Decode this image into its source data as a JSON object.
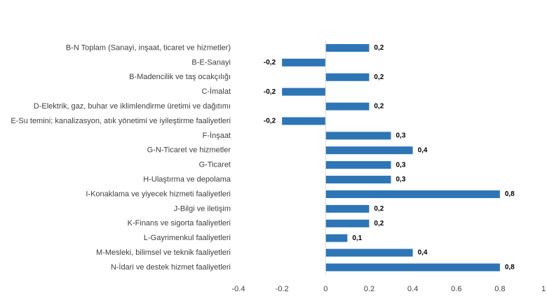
{
  "chart_data": {
    "type": "bar",
    "orientation": "horizontal",
    "categories": [
      "B-N Toplam (Sanayi, inşaat, ticaret ve hizmetler)",
      "B-E-Sanayi",
      "B-Madencilik ve taş ocakçılığı",
      "C-İmalat",
      "D-Elektrik, gaz, buhar ve iklimlendirme üretimi ve dağıtımı",
      "E-Su temini; kanalizasyon, atık yönetimi ve iyileştirme faaliyetleri",
      "F-İnşaat",
      "G-N-Ticaret ve hizmetler",
      "G-Ticaret",
      "H-Ulaştırma ve depolama",
      "I-Konaklama ve yiyecek hizmeti faaliyetleri",
      "J-Bilgi ve iletişim",
      "K-Finans ve sigorta faaliyetleri",
      "L-Gayrimenkul faaliyetleri",
      "M-Mesleki, bilimsel ve teknik faaliyetleri",
      "N-İdari ve destek hizmet faaliyetleri"
    ],
    "values": [
      0.2,
      -0.2,
      0.2,
      -0.2,
      0.2,
      -0.2,
      0.3,
      0.4,
      0.3,
      0.3,
      0.8,
      0.2,
      0.2,
      0.1,
      0.4,
      0.8
    ],
    "value_labels": [
      "0,2",
      "-0,2",
      "0,2",
      "-0,2",
      "0,2",
      "-0,2",
      "0,3",
      "0,4",
      "0,3",
      "0,3",
      "0,8",
      "0,2",
      "0,2",
      "0,1",
      "0,4",
      "0,8"
    ],
    "xlim": [
      -0.4,
      1
    ],
    "xticks": [
      -0.4,
      -0.2,
      0,
      0.2,
      0.4,
      0.6,
      0.8,
      1
    ],
    "xtick_labels": [
      "-0.4",
      "-0.2",
      "0",
      "0.2",
      "0.4",
      "0.6",
      "0.8",
      "1"
    ],
    "bar_color": "#2e75b6",
    "grid": false,
    "legend": "none"
  }
}
